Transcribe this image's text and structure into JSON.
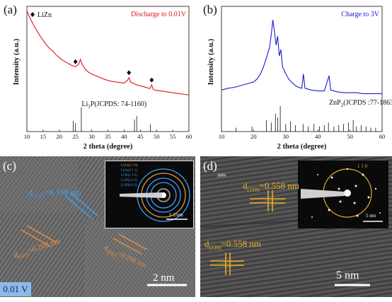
{
  "panels": {
    "a": {
      "label": "(a)"
    },
    "b": {
      "label": "(b)"
    },
    "c": {
      "label": "(c)"
    },
    "d": {
      "label": "(d)"
    }
  },
  "chart_data": [
    {
      "type": "line",
      "panel": "a",
      "legend": "Discharge to 0.01V",
      "legend_color": "#e0141e",
      "marker_legend": "LiZn",
      "xlabel": "2 theta (degree)",
      "ylabel": "Intensity (a.u.)",
      "xlim": [
        10,
        60
      ],
      "xticks": [
        10,
        15,
        20,
        25,
        30,
        35,
        40,
        45,
        50,
        55,
        60
      ],
      "grid": false,
      "series": [
        {
          "color": "#e0141e",
          "x": [
            10,
            11,
            12,
            13,
            14,
            15,
            16,
            17,
            18,
            19,
            20,
            21,
            22,
            23,
            24,
            25,
            26,
            26.5,
            27,
            28,
            29,
            30,
            32,
            34,
            36,
            38,
            40,
            41,
            41.5,
            42,
            44,
            46,
            48,
            48.5,
            49,
            50,
            52,
            54,
            56,
            58,
            60
          ],
          "y": [
            0.98,
            0.9,
            0.83,
            0.77,
            0.71,
            0.66,
            0.61,
            0.57,
            0.54,
            0.5,
            0.47,
            0.44,
            0.42,
            0.4,
            0.38,
            0.37,
            0.4,
            0.45,
            0.4,
            0.34,
            0.31,
            0.29,
            0.26,
            0.23,
            0.21,
            0.2,
            0.19,
            0.22,
            0.25,
            0.2,
            0.17,
            0.15,
            0.13,
            0.17,
            0.12,
            0.11,
            0.1,
            0.09,
            0.08,
            0.07,
            0.06
          ]
        }
      ],
      "markers_x": [
        25,
        41.5,
        48.5
      ],
      "reference": {
        "label": "Li3P(JCPDS: 74-1160)",
        "label_main": "Li",
        "label_sub": "3",
        "label_rest": "P(JCPDS: 74-1160)",
        "positions": [
          24.3,
          25.0,
          26.8,
          43.2,
          43.9,
          48.1
        ],
        "heights": [
          0.45,
          0.35,
          1.0,
          0.5,
          0.65,
          0.3
        ]
      }
    },
    {
      "type": "line",
      "panel": "b",
      "legend": "Charge to 3V",
      "legend_color": "#1a1ad6",
      "xlabel": "2 theta (degree)",
      "ylabel": "Intensity (a.u.)",
      "xlim": [
        10,
        60
      ],
      "xticks": [
        10,
        20,
        30,
        40,
        50,
        60
      ],
      "grid": false,
      "series": [
        {
          "color": "#1a1ad6",
          "x": [
            10,
            12,
            14,
            16,
            18,
            20,
            21,
            22,
            23,
            24,
            25,
            25.5,
            26,
            26.5,
            27,
            27.5,
            28,
            28.5,
            29,
            30,
            31,
            32,
            33,
            34,
            35,
            35.5,
            36,
            38,
            40,
            42,
            43,
            43.5,
            44,
            46,
            48,
            50,
            52,
            54,
            56,
            58,
            60
          ],
          "y": [
            0.1,
            0.12,
            0.13,
            0.15,
            0.17,
            0.19,
            0.22,
            0.27,
            0.35,
            0.46,
            0.58,
            0.72,
            0.88,
            0.75,
            0.6,
            0.7,
            0.48,
            0.55,
            0.36,
            0.28,
            0.22,
            0.18,
            0.15,
            0.13,
            0.12,
            0.28,
            0.12,
            0.1,
            0.09,
            0.09,
            0.2,
            0.26,
            0.1,
            0.08,
            0.07,
            0.07,
            0.07,
            0.06,
            0.06,
            0.06,
            0.06
          ]
        }
      ],
      "reference": {
        "label": "ZnP2(JCPDS :77-1863)",
        "label_main": "ZnP",
        "label_sub": "2",
        "label_rest": "(JCPDS :77-1863)",
        "positions": [
          14.5,
          19.5,
          24.0,
          25.5,
          26.8,
          27.5,
          28.3,
          30.0,
          31.5,
          33.0,
          35.4,
          37.0,
          38.8,
          40.5,
          42.0,
          43.3,
          45.0,
          46.5,
          48.0,
          49.5,
          51.0,
          52.0,
          53.5,
          55.0,
          56.5,
          58.0
        ],
        "heights": [
          0.15,
          0.2,
          0.45,
          0.35,
          0.7,
          0.55,
          1.0,
          0.3,
          0.4,
          0.25,
          0.3,
          0.2,
          0.3,
          0.2,
          0.25,
          0.35,
          0.2,
          0.25,
          0.3,
          0.35,
          0.45,
          0.2,
          0.25,
          0.2,
          0.15,
          0.15
        ]
      }
    }
  ],
  "tem_c": {
    "plane1": "d",
    "plane1_sub": "(111)",
    "plane1_eq": "=0.198 nm",
    "plane2": "d",
    "plane2_sub": "(002)",
    "plane2_eq": "=0.208 nm",
    "plane3": "d",
    "plane3_sub": "(002)",
    "plane3_eq": "=0.208 nm",
    "saed_rings": [
      "LiZn(2 2 0)",
      "LiZn(2 1 1)",
      "Li3P(1 1 2)",
      "Li3P(2 0 2)",
      "Li3P(0 0 2)"
    ],
    "saed_scale": "5  1/nm",
    "scale_bar": "2  nm",
    "badge": "0.01 V"
  },
  "tem_d": {
    "plane_top": "d",
    "plane_top_sub": "(110)",
    "plane_top_eq": "=0.558 nm",
    "plane_bottom": "d",
    "plane_bottom_sub": "(110)",
    "plane_bottom_eq": "=0.558 nm",
    "saed_label": "1 1 0",
    "saed_scale": "5  nm",
    "scale_bar": "5 nm",
    "corner_tag": "ZnP2"
  }
}
